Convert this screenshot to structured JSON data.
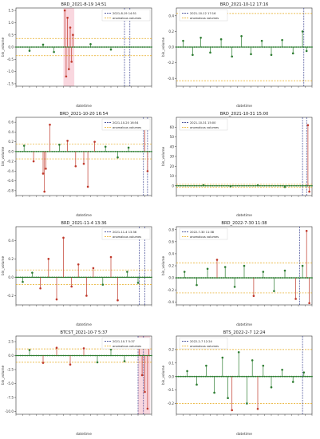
{
  "colors": {
    "stem": "#c0392b",
    "marker": "#2e7d32",
    "baseline": "#2e7d32",
    "band": "#e6a817",
    "vline": "#1a237e",
    "highlight": "#f2a7b8"
  },
  "legend": {
    "anomalous_label": "anomalous volumes"
  },
  "xlabel": "datetime",
  "chart_data": [
    {
      "type": "stem",
      "title": "BRD_2021-8-19 14:51",
      "legend_date": "2021-8-19 14:51",
      "xlabel": "datetime",
      "ylabel": "bin_volume",
      "ylim": [
        -1.6,
        1.6
      ],
      "yticks": [
        "1.5",
        "1.0",
        "0.5",
        "0.0",
        "-0.5",
        "-1.0",
        "-1.5"
      ],
      "ytick_values": [
        1.5,
        1.0,
        0.5,
        0.0,
        -0.5,
        -1.0,
        -1.5
      ],
      "band": [
        0.35,
        -0.35
      ],
      "vlines": [
        0.8,
        0.84
      ],
      "highlight": [
        0.35,
        0.43
      ],
      "stems": [
        {
          "x": 0.36,
          "y": 1.5
        },
        {
          "x": 0.37,
          "y": -1.2
        },
        {
          "x": 0.38,
          "y": 1.2
        },
        {
          "x": 0.39,
          "y": -0.9
        },
        {
          "x": 0.4,
          "y": 0.8
        },
        {
          "x": 0.41,
          "y": -0.6
        },
        {
          "x": 0.42,
          "y": 0.5
        },
        {
          "x": 0.1,
          "y": -0.15
        },
        {
          "x": 0.2,
          "y": 0.1
        },
        {
          "x": 0.28,
          "y": -0.2
        },
        {
          "x": 0.55,
          "y": 0.12
        },
        {
          "x": 0.7,
          "y": -0.1
        }
      ]
    },
    {
      "type": "stem",
      "title": "BRD_2021-10-12 17:16",
      "legend_date": "2021-10-12 17:16",
      "xlabel": "datetime",
      "ylabel": "bin_volume",
      "ylim": [
        -0.5,
        0.5
      ],
      "yticks": [
        "0.4",
        "0.2",
        "0.0",
        "-0.2",
        "-0.4"
      ],
      "ytick_values": [
        0.4,
        0.2,
        0.0,
        -0.2,
        -0.4
      ],
      "band": [
        0.43,
        -0.43
      ],
      "vlines": [
        0.94
      ],
      "highlight": null,
      "stems": [
        {
          "x": 0.05,
          "y": 0.08
        },
        {
          "x": 0.12,
          "y": -0.1
        },
        {
          "x": 0.18,
          "y": 0.12
        },
        {
          "x": 0.25,
          "y": -0.07
        },
        {
          "x": 0.33,
          "y": 0.1
        },
        {
          "x": 0.41,
          "y": -0.12
        },
        {
          "x": 0.48,
          "y": 0.14
        },
        {
          "x": 0.55,
          "y": -0.09
        },
        {
          "x": 0.63,
          "y": 0.08
        },
        {
          "x": 0.7,
          "y": -0.1
        },
        {
          "x": 0.78,
          "y": 0.09
        },
        {
          "x": 0.86,
          "y": -0.08
        },
        {
          "x": 0.93,
          "y": 0.2
        },
        {
          "x": 0.96,
          "y": -0.05
        }
      ]
    },
    {
      "type": "stem",
      "title": "BRD_2021-10-20 16:54",
      "legend_date": "2021-10-20 16:54",
      "xlabel": "datetime",
      "ylabel": "bin_volume",
      "ylim": [
        -0.9,
        0.7
      ],
      "yticks": [
        "0.6",
        "0.4",
        "0.2",
        "0.0",
        "-0.2",
        "-0.4",
        "-0.6",
        "-0.8"
      ],
      "ytick_values": [
        0.6,
        0.4,
        0.2,
        0.0,
        -0.2,
        -0.4,
        -0.6,
        -0.8
      ],
      "band": [
        0.15,
        -0.15
      ],
      "vlines": [
        0.94,
        0.97
      ],
      "highlight": null,
      "stems": [
        {
          "x": 0.06,
          "y": 0.12
        },
        {
          "x": 0.13,
          "y": -0.2
        },
        {
          "x": 0.2,
          "y": -0.45
        },
        {
          "x": 0.21,
          "y": -0.82
        },
        {
          "x": 0.22,
          "y": -0.35
        },
        {
          "x": 0.25,
          "y": 0.55
        },
        {
          "x": 0.32,
          "y": 0.14
        },
        {
          "x": 0.38,
          "y": 0.22
        },
        {
          "x": 0.44,
          "y": -0.3
        },
        {
          "x": 0.5,
          "y": -0.25
        },
        {
          "x": 0.53,
          "y": -0.72
        },
        {
          "x": 0.58,
          "y": 0.2
        },
        {
          "x": 0.66,
          "y": 0.1
        },
        {
          "x": 0.75,
          "y": -0.12
        },
        {
          "x": 0.83,
          "y": 0.08
        },
        {
          "x": 0.95,
          "y": 0.55
        },
        {
          "x": 0.97,
          "y": -0.4
        }
      ]
    },
    {
      "type": "stem",
      "title": "BRD_2021-10-31 15:00",
      "legend_date": "2021-10-31 15:00",
      "xlabel": "datetime",
      "ylabel": "bin_volume",
      "ylim": [
        -10,
        70
      ],
      "yticks": [
        "60",
        "50",
        "40",
        "30",
        "20",
        "10",
        "0"
      ],
      "ytick_values": [
        60,
        50,
        40,
        30,
        20,
        10,
        0
      ],
      "band": [
        1.5,
        -1.5
      ],
      "vlines": [
        0.93,
        0.96
      ],
      "highlight": null,
      "stems": [
        {
          "x": 0.2,
          "y": 0.6
        },
        {
          "x": 0.4,
          "y": -0.5
        },
        {
          "x": 0.6,
          "y": 0.5
        },
        {
          "x": 0.8,
          "y": -1.2
        },
        {
          "x": 0.97,
          "y": 62
        },
        {
          "x": 0.98,
          "y": -6
        }
      ]
    },
    {
      "type": "stem",
      "title": "BRD_2021-11-4 13:36",
      "legend_date": "2021-11-4 13:36",
      "xlabel": "datetime",
      "ylabel": "bin_volume",
      "ylim": [
        -0.3,
        0.55
      ],
      "yticks": [
        "0.4",
        "0.2",
        "0.0",
        "-0.2"
      ],
      "ytick_values": [
        0.4,
        0.2,
        0.0,
        -0.2
      ],
      "band": [
        0.08,
        -0.08
      ],
      "vlines": [
        0.91,
        0.95
      ],
      "highlight": null,
      "stems": [
        {
          "x": 0.05,
          "y": -0.05
        },
        {
          "x": 0.12,
          "y": 0.05
        },
        {
          "x": 0.18,
          "y": -0.12
        },
        {
          "x": 0.24,
          "y": 0.2
        },
        {
          "x": 0.3,
          "y": -0.24
        },
        {
          "x": 0.35,
          "y": 0.43
        },
        {
          "x": 0.41,
          "y": -0.1
        },
        {
          "x": 0.46,
          "y": 0.14
        },
        {
          "x": 0.52,
          "y": -0.2
        },
        {
          "x": 0.57,
          "y": 0.1
        },
        {
          "x": 0.64,
          "y": -0.08
        },
        {
          "x": 0.7,
          "y": 0.22
        },
        {
          "x": 0.75,
          "y": -0.25
        },
        {
          "x": 0.82,
          "y": 0.06
        },
        {
          "x": 0.9,
          "y": -0.06
        }
      ]
    },
    {
      "type": "stem",
      "title": "BRD_2022-7-30 11:38",
      "legend_date": "2022-7-30 11:38",
      "xlabel": "datetime",
      "ylabel": "bin_volume",
      "ylim": [
        -0.45,
        0.85
      ],
      "yticks": [
        "0.8",
        "0.6",
        "0.4",
        "0.2",
        "0.0",
        "-0.2",
        "-0.4"
      ],
      "ytick_values": [
        0.8,
        0.6,
        0.4,
        0.2,
        0.0,
        -0.2,
        -0.4
      ],
      "band": [
        0.25,
        -0.25
      ],
      "vlines": [
        0.91
      ],
      "highlight": null,
      "stems": [
        {
          "x": 0.06,
          "y": 0.1
        },
        {
          "x": 0.15,
          "y": -0.12
        },
        {
          "x": 0.23,
          "y": 0.15
        },
        {
          "x": 0.3,
          "y": 0.3
        },
        {
          "x": 0.36,
          "y": 0.18
        },
        {
          "x": 0.43,
          "y": -0.15
        },
        {
          "x": 0.5,
          "y": 0.2
        },
        {
          "x": 0.57,
          "y": -0.3
        },
        {
          "x": 0.64,
          "y": 0.1
        },
        {
          "x": 0.72,
          "y": -0.22
        },
        {
          "x": 0.8,
          "y": 0.12
        },
        {
          "x": 0.88,
          "y": -0.35
        },
        {
          "x": 0.93,
          "y": 0.2
        },
        {
          "x": 0.96,
          "y": 0.78
        },
        {
          "x": 0.98,
          "y": -0.42
        }
      ]
    },
    {
      "type": "stem",
      "title": "BTCST_2021-10-7 5:37",
      "legend_date": "2021-10-7 5:37",
      "xlabel": "datetime",
      "ylabel": "bin_volume",
      "ylim": [
        -10.5,
        3.5
      ],
      "yticks": [
        "2.5",
        "0.0",
        "-2.5",
        "-5.0",
        "-7.5",
        "-10.0"
      ],
      "ytick_values": [
        2.5,
        0.0,
        -2.5,
        -5.0,
        -7.5,
        -10.0
      ],
      "band": [
        1.2,
        -1.2
      ],
      "vlines": [
        0.9,
        0.94
      ],
      "highlight": [
        0.9,
        0.99
      ],
      "stems": [
        {
          "x": 0.1,
          "y": 1.0
        },
        {
          "x": 0.2,
          "y": -1.3
        },
        {
          "x": 0.3,
          "y": 1.4
        },
        {
          "x": 0.4,
          "y": -1.6
        },
        {
          "x": 0.5,
          "y": 1.3
        },
        {
          "x": 0.6,
          "y": -1.2
        },
        {
          "x": 0.7,
          "y": 1.1
        },
        {
          "x": 0.8,
          "y": -1.0
        },
        {
          "x": 0.91,
          "y": 2.6
        },
        {
          "x": 0.93,
          "y": -3.5
        },
        {
          "x": 0.95,
          "y": -6.5
        },
        {
          "x": 0.97,
          "y": -9.5
        },
        {
          "x": 0.98,
          "y": 2.8
        }
      ]
    },
    {
      "type": "stem",
      "title": "BTS_2022-2-7 12:24",
      "legend_date": "2022-2-7 12:24",
      "xlabel": "datetime",
      "ylabel": "bin_volume",
      "ylim": [
        -0.28,
        0.3
      ],
      "yticks": [
        "0.2",
        "0.1",
        "0.0",
        "-0.1",
        "-0.2"
      ],
      "ytick_values": [
        0.2,
        0.1,
        0.0,
        -0.1,
        -0.2
      ],
      "band": [
        0.2,
        -0.2
      ],
      "vlines": [
        0.93
      ],
      "highlight": null,
      "stems": [
        {
          "x": 0.08,
          "y": 0.04
        },
        {
          "x": 0.15,
          "y": -0.06
        },
        {
          "x": 0.22,
          "y": 0.08
        },
        {
          "x": 0.28,
          "y": -0.12
        },
        {
          "x": 0.34,
          "y": 0.14
        },
        {
          "x": 0.38,
          "y": -0.16
        },
        {
          "x": 0.41,
          "y": -0.25
        },
        {
          "x": 0.46,
          "y": 0.18
        },
        {
          "x": 0.52,
          "y": -0.2
        },
        {
          "x": 0.56,
          "y": 0.12
        },
        {
          "x": 0.6,
          "y": -0.24
        },
        {
          "x": 0.64,
          "y": 0.08
        },
        {
          "x": 0.7,
          "y": -0.08
        },
        {
          "x": 0.78,
          "y": 0.05
        },
        {
          "x": 0.86,
          "y": -0.04
        },
        {
          "x": 0.94,
          "y": 0.03
        }
      ]
    }
  ]
}
